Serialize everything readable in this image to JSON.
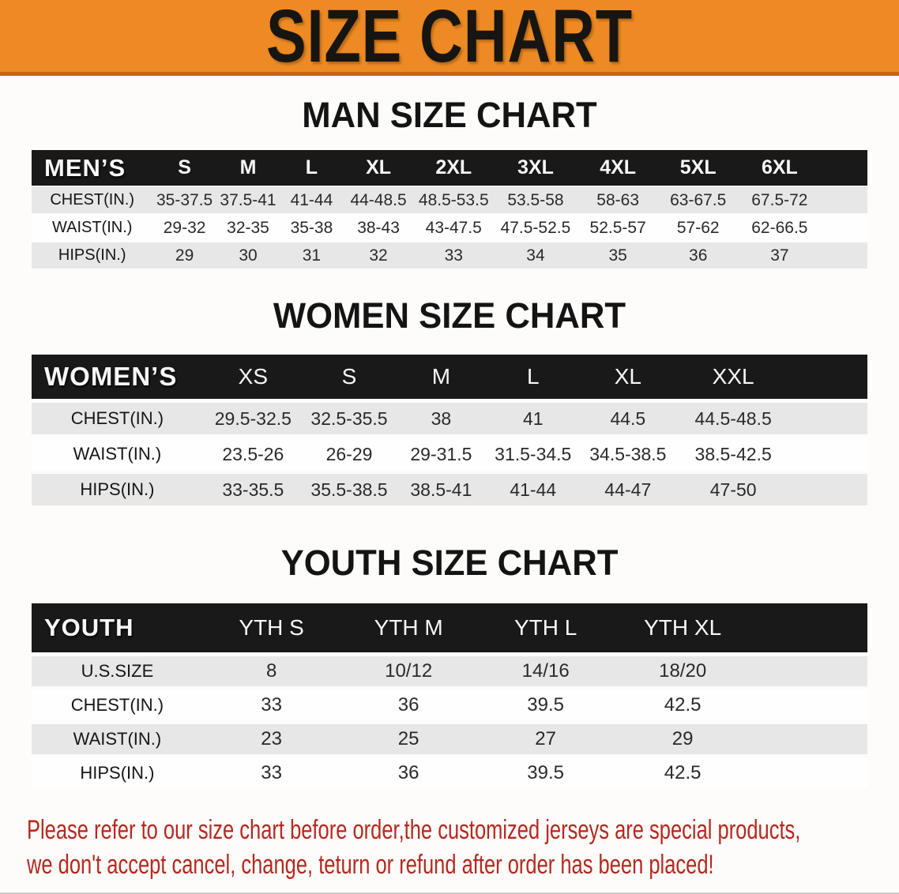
{
  "banner": {
    "title": "SIZE CHART",
    "bg_color": "#ee8a23",
    "border_color": "#c06a10",
    "text_color": "#171512"
  },
  "sections": [
    {
      "id": "mens",
      "title": "MAN SIZE CHART",
      "group_label": "MEN’S",
      "sizes": [
        "S",
        "M",
        "L",
        "XL",
        "2XL",
        "3XL",
        "4XL",
        "5XL",
        "6XL"
      ],
      "rows": [
        {
          "label": "CHEST(IN.)",
          "values": [
            "35-37.5",
            "37.5-41",
            "41-44",
            "44-48.5",
            "48.5-53.5",
            "53.5-58",
            "58-63",
            "63-67.5",
            "67.5-72"
          ]
        },
        {
          "label": "WAIST(IN.)",
          "values": [
            "29-32",
            "32-35",
            "35-38",
            "38-43",
            "43-47.5",
            "47.5-52.5",
            "52.5-57",
            "57-62",
            "62-66.5"
          ]
        },
        {
          "label": "HIPS(IN.)",
          "values": [
            "29",
            "30",
            "31",
            "32",
            "33",
            "34",
            "35",
            "36",
            "37"
          ]
        }
      ]
    },
    {
      "id": "womens",
      "title": "WOMEN SIZE CHART",
      "group_label": "WOMEN’S",
      "sizes": [
        "XS",
        "S",
        "M",
        "L",
        "XL",
        "XXL"
      ],
      "rows": [
        {
          "label": "CHEST(IN.)",
          "values": [
            "29.5-32.5",
            "32.5-35.5",
            "38",
            "41",
            "44.5",
            "44.5-48.5"
          ]
        },
        {
          "label": "WAIST(IN.)",
          "values": [
            "23.5-26",
            "26-29",
            "29-31.5",
            "31.5-34.5",
            "34.5-38.5",
            "38.5-42.5"
          ]
        },
        {
          "label": "HIPS(IN.)",
          "values": [
            "33-35.5",
            "35.5-38.5",
            "38.5-41",
            "41-44",
            "44-47",
            "47-50"
          ]
        }
      ]
    },
    {
      "id": "youth",
      "title": "YOUTH SIZE CHART",
      "group_label": "YOUTH",
      "sizes": [
        "YTH S",
        "YTH M",
        "YTH L",
        "YTH XL"
      ],
      "rows": [
        {
          "label": "U.S.SIZE",
          "values": [
            "8",
            "10/12",
            "14/16",
            "18/20"
          ]
        },
        {
          "label": "CHEST(IN.)",
          "values": [
            "33",
            "36",
            "39.5",
            "42.5"
          ]
        },
        {
          "label": "WAIST(IN.)",
          "values": [
            "23",
            "25",
            "27",
            "29"
          ]
        },
        {
          "label": "HIPS(IN.)",
          "values": [
            "33",
            "36",
            "39.5",
            "42.5"
          ]
        }
      ]
    }
  ],
  "table_colors": {
    "header_bg": "#191919",
    "header_text": "#f7f7f7",
    "row_alt_bg": "#e7e7e7",
    "row_bg": "#fefefe",
    "value_text": "#2a2a2a"
  },
  "footer": {
    "text_color": "#b5281e",
    "lines": [
      "Please refer to our size chart before order,the customized jerseys are special products,",
      "we don't accept cancel, change, teturn or refund after order has been placed!"
    ]
  }
}
